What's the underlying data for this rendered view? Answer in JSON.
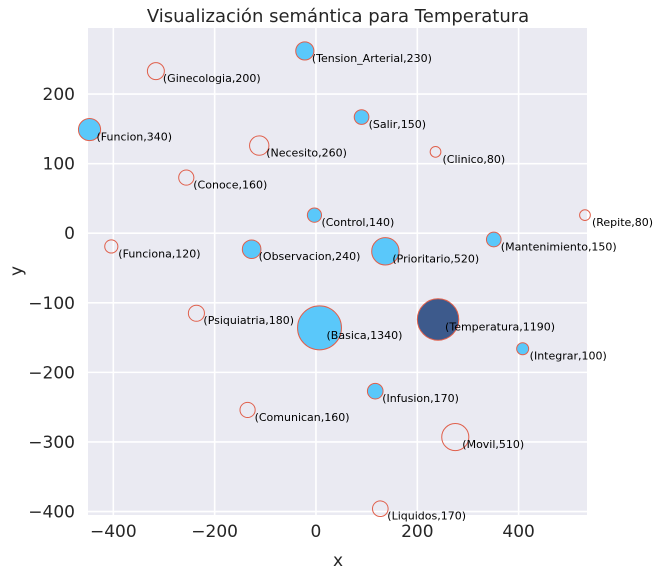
{
  "chart_data": {
    "type": "scatter",
    "title": "Visualización semántica para Temperatura",
    "xlabel": "x",
    "ylabel": "y",
    "xlim": [
      -450,
      535
    ],
    "ylim": [
      -405,
      295
    ],
    "xticks": [
      -400,
      -200,
      0,
      200,
      400
    ],
    "yticks": [
      -400,
      -300,
      -200,
      -100,
      0,
      100,
      200
    ],
    "xtick_labels": [
      "−400",
      "−200",
      "0",
      "200",
      "400"
    ],
    "ytick_labels": [
      "−400",
      "−300",
      "−200",
      "−100",
      "0",
      "100",
      "200"
    ],
    "grid": true,
    "colors": {
      "background": "#EAEAF2",
      "grid": "#FFFFFF",
      "filled": "#5AC8FA",
      "highlight": "#3D5A8C",
      "edge": "#E0604C"
    },
    "points": [
      {
        "label": "(Tension_Arterial,230)",
        "x": -22,
        "y": 262,
        "value": 230,
        "style": "filled"
      },
      {
        "label": "(Ginecologia,200)",
        "x": -316,
        "y": 233,
        "value": 200,
        "style": "hollow"
      },
      {
        "label": "(Salir,150)",
        "x": 90,
        "y": 167,
        "value": 150,
        "style": "filled"
      },
      {
        "label": "(Funcion,340)",
        "x": -447,
        "y": 149,
        "value": 340,
        "style": "filled"
      },
      {
        "label": "(Necesito,260)",
        "x": -112,
        "y": 126,
        "value": 260,
        "style": "hollow"
      },
      {
        "label": "(Clinico,80)",
        "x": 236,
        "y": 117,
        "value": 80,
        "style": "hollow"
      },
      {
        "label": "(Conoce,160)",
        "x": -256,
        "y": 80,
        "value": 160,
        "style": "hollow"
      },
      {
        "label": "(Control,140)",
        "x": -3,
        "y": 26,
        "value": 140,
        "style": "filled"
      },
      {
        "label": "(Repite,80)",
        "x": 531,
        "y": 26,
        "value": 80,
        "style": "hollow"
      },
      {
        "label": "(Mantenimiento,150)",
        "x": 351,
        "y": -9,
        "value": 150,
        "style": "filled"
      },
      {
        "label": "(Funciona,120)",
        "x": -404,
        "y": -19,
        "value": 120,
        "style": "hollow"
      },
      {
        "label": "(Observacion,240)",
        "x": -127,
        "y": -23,
        "value": 240,
        "style": "filled"
      },
      {
        "label": "(Prioritario,520)",
        "x": 137,
        "y": -26,
        "value": 520,
        "style": "filled"
      },
      {
        "label": "(Psiquiatria,180)",
        "x": -236,
        "y": -115,
        "value": 180,
        "style": "hollow"
      },
      {
        "label": "(Basica,1340)",
        "x": 7,
        "y": -136,
        "value": 1340,
        "style": "filled"
      },
      {
        "label": "(Temperatura,1190)",
        "x": 241,
        "y": -124,
        "value": 1190,
        "style": "highlight"
      },
      {
        "label": "(Integrar,100)",
        "x": 408,
        "y": -166,
        "value": 100,
        "style": "filled"
      },
      {
        "label": "(Infusion,170)",
        "x": 117,
        "y": -227,
        "value": 170,
        "style": "filled"
      },
      {
        "label": "(Comunican,160)",
        "x": -135,
        "y": -254,
        "value": 160,
        "style": "hollow"
      },
      {
        "label": "(Movil,510)",
        "x": 275,
        "y": -293,
        "value": 510,
        "style": "hollow"
      },
      {
        "label": "(Liquidos,170)",
        "x": 127,
        "y": -396,
        "value": 170,
        "style": "hollow"
      }
    ]
  }
}
